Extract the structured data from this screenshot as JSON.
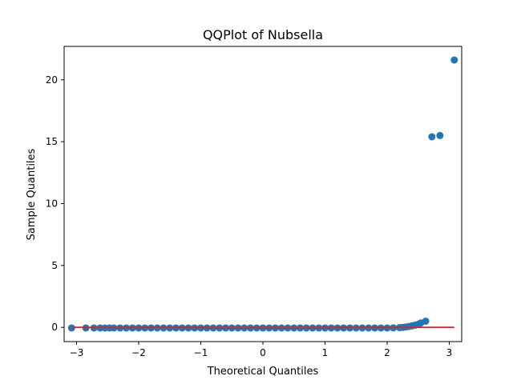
{
  "chart_data": {
    "type": "scatter",
    "title": "QQPlot of Nubsella",
    "xlabel": "Theoretical Quantiles",
    "ylabel": "Sample Quantiles",
    "xlim": [
      -3.2,
      3.2
    ],
    "ylim": [
      -1.15,
      22.7
    ],
    "xticks": [
      -3,
      -2,
      -1,
      0,
      1,
      2,
      3
    ],
    "xtick_labels": [
      "−3",
      "−2",
      "−1",
      "0",
      "1",
      "2",
      "3"
    ],
    "yticks": [
      0,
      5,
      10,
      15,
      20
    ],
    "ytick_labels": [
      "0",
      "5",
      "10",
      "15",
      "20"
    ],
    "grid": false,
    "marker_color": "#1f77b4",
    "reference_line": {
      "color": "#d62728",
      "x": [
        -3.08,
        3.08
      ],
      "y": [
        0,
        0
      ]
    },
    "outliers": [
      {
        "x": 2.72,
        "y": 15.4
      },
      {
        "x": 2.85,
        "y": 15.5
      },
      {
        "x": 3.08,
        "y": 21.6
      }
    ],
    "bulk_points": {
      "x": [
        -3.08,
        -2.85,
        -2.72,
        -2.62,
        -2.54,
        -2.47,
        -2.4,
        -2.3,
        -2.2,
        -2.1,
        -2.0,
        -1.9,
        -1.8,
        -1.7,
        -1.6,
        -1.5,
        -1.4,
        -1.3,
        -1.2,
        -1.1,
        -1.0,
        -0.9,
        -0.8,
        -0.7,
        -0.6,
        -0.5,
        -0.4,
        -0.3,
        -0.2,
        -0.1,
        0.0,
        0.1,
        0.2,
        0.3,
        0.4,
        0.5,
        0.6,
        0.7,
        0.8,
        0.9,
        1.0,
        1.1,
        1.2,
        1.3,
        1.4,
        1.5,
        1.6,
        1.7,
        1.8,
        1.9,
        2.0,
        2.1,
        2.2,
        2.25,
        2.3,
        2.35,
        2.4,
        2.45,
        2.5,
        2.54,
        2.62
      ],
      "y": [
        -0.05,
        -0.05,
        -0.05,
        -0.05,
        -0.05,
        -0.05,
        -0.05,
        -0.05,
        -0.05,
        -0.05,
        -0.05,
        -0.05,
        -0.05,
        -0.05,
        -0.05,
        -0.05,
        -0.05,
        -0.05,
        -0.05,
        -0.05,
        -0.05,
        -0.05,
        -0.05,
        -0.05,
        -0.05,
        -0.05,
        -0.05,
        -0.05,
        -0.05,
        -0.05,
        -0.05,
        -0.05,
        -0.05,
        -0.05,
        -0.05,
        -0.05,
        -0.05,
        -0.05,
        -0.05,
        -0.05,
        -0.05,
        -0.05,
        -0.05,
        -0.05,
        -0.05,
        -0.05,
        -0.05,
        -0.05,
        -0.05,
        -0.05,
        -0.05,
        -0.04,
        -0.02,
        0.0,
        0.03,
        0.07,
        0.12,
        0.18,
        0.25,
        0.35,
        0.5
      ]
    }
  }
}
